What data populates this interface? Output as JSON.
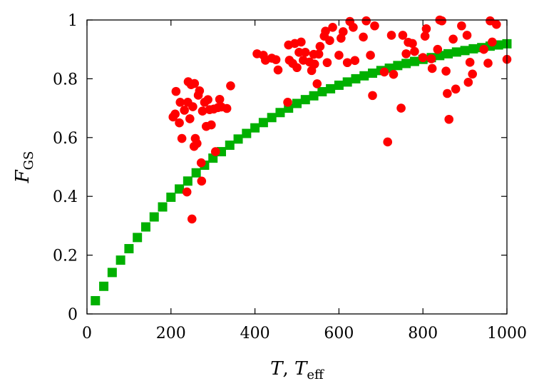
{
  "chart_data": {
    "type": "scatter",
    "title": "",
    "xlabel": {
      "parts": [
        {
          "text": "T",
          "sub": ""
        },
        {
          "text": ", ",
          "sub": "",
          "plain": true
        },
        {
          "text": "T",
          "sub": "eff"
        }
      ]
    },
    "ylabel": {
      "text": "F",
      "sub": "GS"
    },
    "xlim": [
      0,
      1000
    ],
    "ylim": [
      0,
      1
    ],
    "xticks": [
      0,
      200,
      400,
      600,
      800,
      1000
    ],
    "yticks": [
      0,
      0.2,
      0.4,
      0.6,
      0.8,
      1
    ],
    "xtick_labels": [
      "0",
      "200",
      "400",
      "600",
      "800",
      "1000"
    ],
    "ytick_labels": [
      "0",
      "0.2",
      "0.4",
      "0.6",
      "0.8",
      "1"
    ],
    "grid": false,
    "legend": "none",
    "series": [
      {
        "marker": "square",
        "color": "#00b000",
        "points": [
          [
            20,
            0.045
          ],
          [
            40,
            0.094
          ],
          [
            60,
            0.141
          ],
          [
            80,
            0.183
          ],
          [
            100,
            0.222
          ],
          [
            120,
            0.26
          ],
          [
            140,
            0.296
          ],
          [
            160,
            0.33
          ],
          [
            180,
            0.364
          ],
          [
            200,
            0.397
          ],
          [
            220,
            0.425
          ],
          [
            240,
            0.452
          ],
          [
            260,
            0.48
          ],
          [
            280,
            0.506
          ],
          [
            300,
            0.53
          ],
          [
            320,
            0.552
          ],
          [
            340,
            0.574
          ],
          [
            360,
            0.595
          ],
          [
            380,
            0.614
          ],
          [
            400,
            0.633
          ],
          [
            420,
            0.651
          ],
          [
            440,
            0.668
          ],
          [
            460,
            0.685
          ],
          [
            480,
            0.7
          ],
          [
            500,
            0.716
          ],
          [
            520,
            0.729
          ],
          [
            540,
            0.742
          ],
          [
            560,
            0.756
          ],
          [
            580,
            0.766
          ],
          [
            600,
            0.778
          ],
          [
            620,
            0.789
          ],
          [
            640,
            0.8
          ],
          [
            660,
            0.81
          ],
          [
            680,
            0.819
          ],
          [
            700,
            0.828
          ],
          [
            720,
            0.836
          ],
          [
            740,
            0.845
          ],
          [
            760,
            0.852
          ],
          [
            780,
            0.859
          ],
          [
            800,
            0.866
          ],
          [
            820,
            0.872
          ],
          [
            840,
            0.879
          ],
          [
            860,
            0.885
          ],
          [
            880,
            0.891
          ],
          [
            900,
            0.896
          ],
          [
            920,
            0.902
          ],
          [
            940,
            0.906
          ],
          [
            960,
            0.911
          ],
          [
            980,
            0.915
          ],
          [
            1000,
            0.919
          ]
        ]
      },
      {
        "marker": "circle",
        "color": "#ff0000",
        "points": [
          [
            205,
            0.67
          ],
          [
            210,
            0.68
          ],
          [
            212,
            0.757
          ],
          [
            220,
            0.65
          ],
          [
            222,
            0.72
          ],
          [
            226,
            0.597
          ],
          [
            232,
            0.693
          ],
          [
            238,
            0.415
          ],
          [
            240,
            0.72
          ],
          [
            241,
            0.79
          ],
          [
            245,
            0.664
          ],
          [
            248,
            0.78
          ],
          [
            250,
            0.323
          ],
          [
            252,
            0.705
          ],
          [
            255,
            0.57
          ],
          [
            256,
            0.784
          ],
          [
            258,
            0.597
          ],
          [
            262,
            0.58
          ],
          [
            265,
            0.744
          ],
          [
            268,
            0.759
          ],
          [
            272,
            0.514
          ],
          [
            273,
            0.452
          ],
          [
            275,
            0.69
          ],
          [
            280,
            0.72
          ],
          [
            284,
            0.638
          ],
          [
            288,
            0.729
          ],
          [
            292,
            0.695
          ],
          [
            296,
            0.643
          ],
          [
            302,
            0.697
          ],
          [
            306,
            0.552
          ],
          [
            312,
            0.702
          ],
          [
            316,
            0.73
          ],
          [
            320,
            0.704
          ],
          [
            333,
            0.699
          ],
          [
            342,
            0.776
          ],
          [
            405,
            0.885
          ],
          [
            420,
            0.88
          ],
          [
            425,
            0.863
          ],
          [
            440,
            0.87
          ],
          [
            450,
            0.865
          ],
          [
            455,
            0.83
          ],
          [
            478,
            0.72
          ],
          [
            480,
            0.915
          ],
          [
            482,
            0.863
          ],
          [
            490,
            0.852
          ],
          [
            495,
            0.92
          ],
          [
            500,
            0.838
          ],
          [
            505,
            0.89
          ],
          [
            510,
            0.925
          ],
          [
            515,
            0.863
          ],
          [
            520,
            0.89
          ],
          [
            530,
            0.857
          ],
          [
            535,
            0.828
          ],
          [
            540,
            0.883
          ],
          [
            542,
            0.85
          ],
          [
            548,
            0.783
          ],
          [
            552,
            0.884
          ],
          [
            555,
            0.91
          ],
          [
            565,
            0.945
          ],
          [
            568,
            0.962
          ],
          [
            572,
            0.855
          ],
          [
            578,
            0.93
          ],
          [
            585,
            0.975
          ],
          [
            600,
            0.88
          ],
          [
            605,
            0.938
          ],
          [
            610,
            0.96
          ],
          [
            620,
            0.855
          ],
          [
            626,
            0.995
          ],
          [
            634,
            0.975
          ],
          [
            638,
            0.862
          ],
          [
            658,
            0.942
          ],
          [
            665,
            0.997
          ],
          [
            675,
            0.88
          ],
          [
            680,
            0.743
          ],
          [
            685,
            0.98
          ],
          [
            708,
            0.823
          ],
          [
            716,
            0.585
          ],
          [
            725,
            0.948
          ],
          [
            730,
            0.815
          ],
          [
            748,
            0.7
          ],
          [
            752,
            0.948
          ],
          [
            760,
            0.885
          ],
          [
            765,
            0.924
          ],
          [
            775,
            0.92
          ],
          [
            780,
            0.893
          ],
          [
            800,
            0.872
          ],
          [
            805,
            0.945
          ],
          [
            808,
            0.97
          ],
          [
            820,
            0.868
          ],
          [
            822,
            0.835
          ],
          [
            835,
            0.9
          ],
          [
            840,
            1.0
          ],
          [
            845,
            0.997
          ],
          [
            855,
            0.826
          ],
          [
            858,
            0.75
          ],
          [
            862,
            0.662
          ],
          [
            872,
            0.935
          ],
          [
            878,
            0.765
          ],
          [
            892,
            0.98
          ],
          [
            905,
            0.948
          ],
          [
            908,
            0.788
          ],
          [
            912,
            0.856
          ],
          [
            918,
            0.816
          ],
          [
            945,
            0.9
          ],
          [
            955,
            0.853
          ],
          [
            960,
            0.997
          ],
          [
            965,
            0.925
          ],
          [
            975,
            0.985
          ],
          [
            1000,
            0.866
          ]
        ]
      }
    ]
  }
}
